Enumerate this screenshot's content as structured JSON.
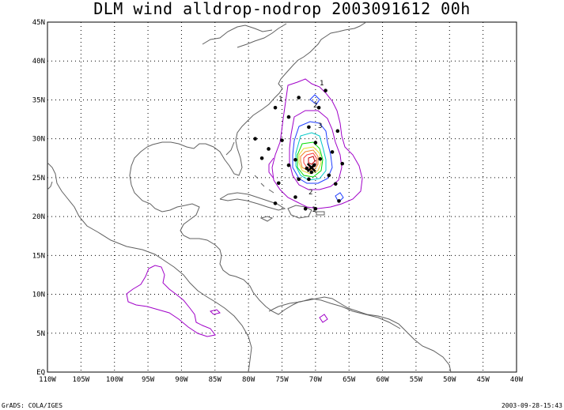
{
  "title": "DLM wind alldrop-nodrop 2003091612 00h",
  "footer": {
    "left": "GrADS: COLA/IGES",
    "right": "2003-09-28-15:43"
  },
  "axes": {
    "lon_labels": [
      "110W",
      "105W",
      "100W",
      "95W",
      "90W",
      "85W",
      "80W",
      "75W",
      "70W",
      "65W",
      "60W",
      "55W",
      "50W",
      "45W",
      "40W"
    ],
    "lat_labels": [
      "EQ",
      "5N",
      "10N",
      "15N",
      "20N",
      "25N",
      "30N",
      "35N",
      "40N",
      "45N"
    ],
    "lon_range": [
      -110,
      -40
    ],
    "lat_range": [
      0,
      45
    ],
    "grid": true
  },
  "contour_labels": [
    "1",
    "1",
    "2",
    "3",
    "2",
    "1"
  ],
  "colors": {
    "coast": "#606060",
    "grid": "#000000",
    "contour_1": "#a000c8",
    "contour_2": "#1e3cff",
    "contour_3": "#00c8c8",
    "contour_4": "#00dc00",
    "contour_5": "#e6dc32",
    "contour_6": "#f08228",
    "contour_7": "#fa3c3c",
    "contour_8": "#c80000",
    "drops": "#000000"
  },
  "dropsondes": [
    [
      -68.5,
      36.2
    ],
    [
      -72.5,
      35.3
    ],
    [
      -76.0,
      34.0
    ],
    [
      -69.5,
      34.0
    ],
    [
      -74.0,
      32.8
    ],
    [
      -71.0,
      31.5
    ],
    [
      -66.7,
      31.0
    ],
    [
      -79.0,
      30.0
    ],
    [
      -75.0,
      29.8
    ],
    [
      -70.0,
      29.5
    ],
    [
      -77.0,
      28.7
    ],
    [
      -67.5,
      28.3
    ],
    [
      -78.0,
      27.5
    ],
    [
      -73.0,
      27.3
    ],
    [
      -69.3,
      27.4
    ],
    [
      -66.0,
      26.8
    ],
    [
      -74.0,
      26.6
    ],
    [
      -70.2,
      26.6
    ],
    [
      -71.3,
      26.2
    ],
    [
      -70.6,
      25.7
    ],
    [
      -68.0,
      25.3
    ],
    [
      -72.5,
      24.8
    ],
    [
      -75.5,
      24.3
    ],
    [
      -71.0,
      24.8
    ],
    [
      -67.0,
      24.2
    ],
    [
      -73.0,
      22.5
    ],
    [
      -76.0,
      21.7
    ],
    [
      -66.5,
      22.0
    ],
    [
      -70.0,
      21.0
    ],
    [
      -71.5,
      21.0
    ]
  ],
  "storm_center": [
    -70.6,
    26.3
  ]
}
